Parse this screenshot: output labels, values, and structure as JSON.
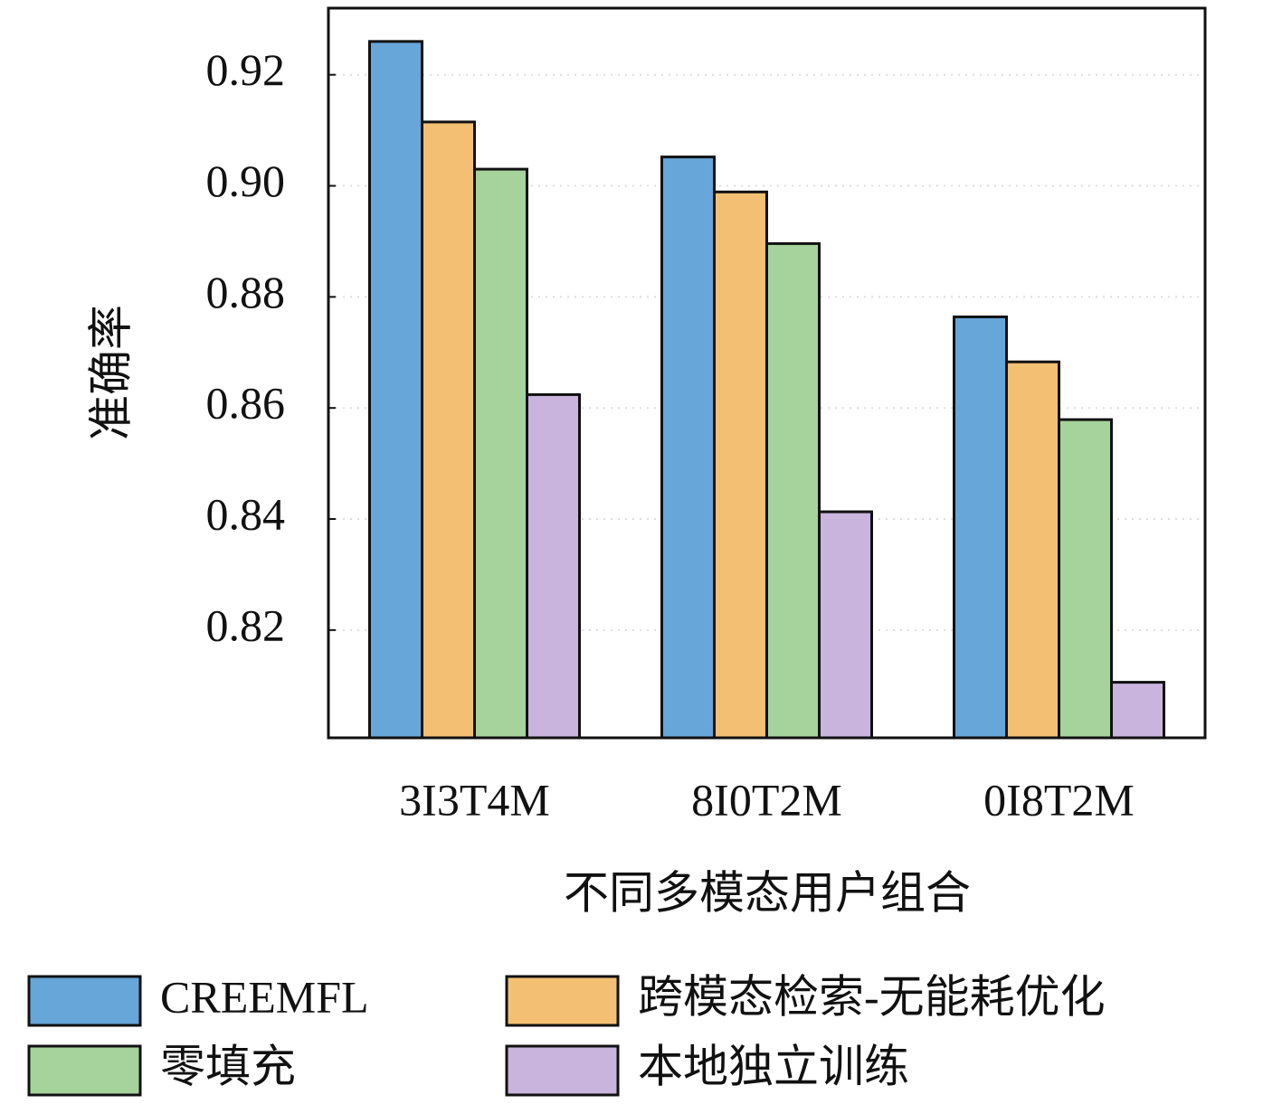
{
  "chart_data": {
    "type": "bar",
    "x_label": "不同多模态用户组合",
    "y_label": "准确率",
    "categories": [
      "3I3T4M",
      "8I0T2M",
      "0I8T2M"
    ],
    "series": [
      {
        "name": "CREEMFL",
        "color": "#66a6d9",
        "values": [
          0.926,
          0.9052,
          0.8764
        ]
      },
      {
        "name": "跨模态检索-无能耗优化",
        "color": "#f3c073",
        "values": [
          0.9115,
          0.8989,
          0.8683
        ]
      },
      {
        "name": "零填充",
        "color": "#a6d39b",
        "values": [
          0.903,
          0.8896,
          0.8579
        ]
      },
      {
        "name": "本地独立训练",
        "color": "#c8b4dc",
        "values": [
          0.8624,
          0.8413,
          0.8106
        ]
      }
    ],
    "ylim": [
      0.8006,
      0.932
    ],
    "yticks": [
      {
        "value": 0.82,
        "label": "0.82"
      },
      {
        "value": 0.84,
        "label": "0.84"
      },
      {
        "value": 0.86,
        "label": "0.86"
      },
      {
        "value": 0.88,
        "label": "0.88"
      },
      {
        "value": 0.9,
        "label": "0.90"
      },
      {
        "value": 0.92,
        "label": "0.92"
      }
    ],
    "grid": true,
    "legend": "bottom"
  }
}
